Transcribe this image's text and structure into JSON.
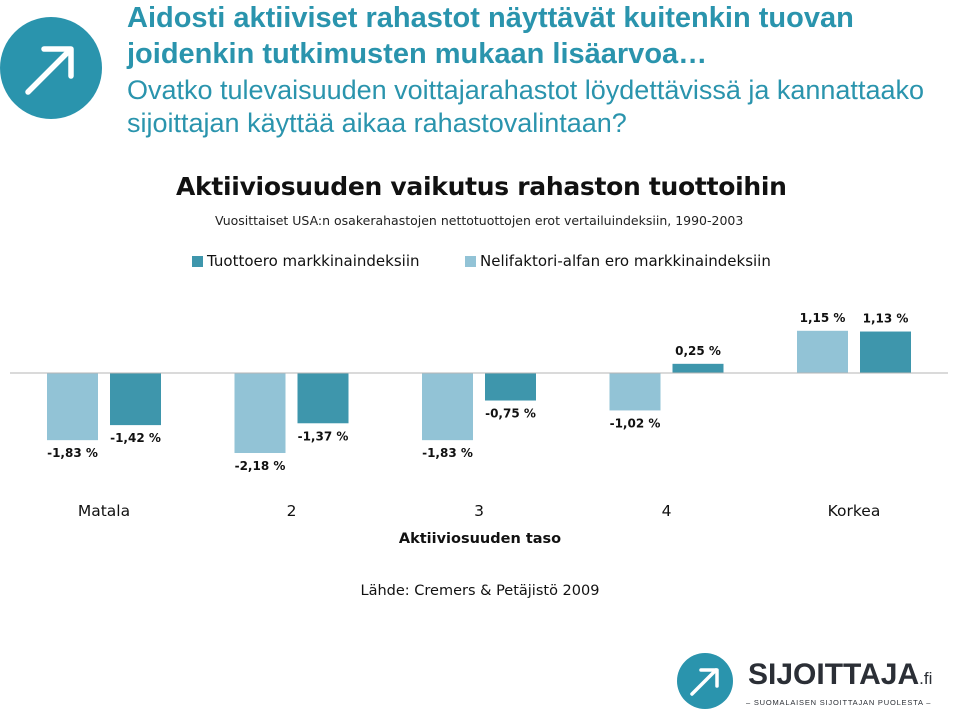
{
  "header": {
    "title": "Aidosti aktiiviset rahastot näyttävät kuitenkin tuovan joidenkin tutkimusten mukaan lisäarvoa…",
    "subtitle": "Ovatko tulevaisuuden voittajarahastot löydettävissä ja kannattaako sijoittajan käyttää aikaa rahastovalintaan?",
    "logo_icon": "arrow-up-right-circle-icon",
    "color": "#2a94ad"
  },
  "chart_data": {
    "type": "bar",
    "title": "Aktiiviosuuden vaikutus rahaston tuottoihin",
    "subtitle": "Vuosittaiset USA:n osakerahastojen nettotuottojen erot vertailuindeksiin, 1990-2003",
    "xlabel": "Aktiiviosuuden taso",
    "ylabel": "",
    "categories": [
      "Matala",
      "2",
      "3",
      "4",
      "Korkea"
    ],
    "series": [
      {
        "name": "Nelifaktori-alfan ero markkinaindeksiin",
        "color": "#92c3d6",
        "values": [
          -1.83,
          -2.18,
          -1.83,
          -1.02,
          1.15
        ],
        "labels": [
          "-1,83 %",
          "-2,18 %",
          "-1,83 %",
          "-1,02 %",
          "1,15 %"
        ]
      },
      {
        "name": "Tuottoero markkinaindeksiin",
        "color": "#3e96ac",
        "values": [
          -1.42,
          -1.37,
          -0.75,
          0.25,
          1.13
        ],
        "labels": [
          "-1,42 %",
          "-1,37 %",
          "-0,75 %",
          "0,25 %",
          "1,13 %"
        ]
      }
    ],
    "legend": [
      {
        "name": "Tuottoero markkinaindeksiin",
        "color": "#3e96ac"
      },
      {
        "name": "Nelifaktori-alfan ero markkinaindeksiin",
        "color": "#92c3d6"
      }
    ],
    "legend_position": "top",
    "grid": false,
    "ylim": [
      -2.5,
      1.5
    ]
  },
  "source": "Lähde: Cremers & Petäjistö 2009",
  "brand": {
    "name": "SIJOITTAJA",
    "suffix": ".fi",
    "tagline": "– SUOMALAISEN SIJOITTAJAN PUOLESTA –",
    "logo_icon": "arrow-up-right-circle-icon",
    "color": "#2a94ad"
  }
}
